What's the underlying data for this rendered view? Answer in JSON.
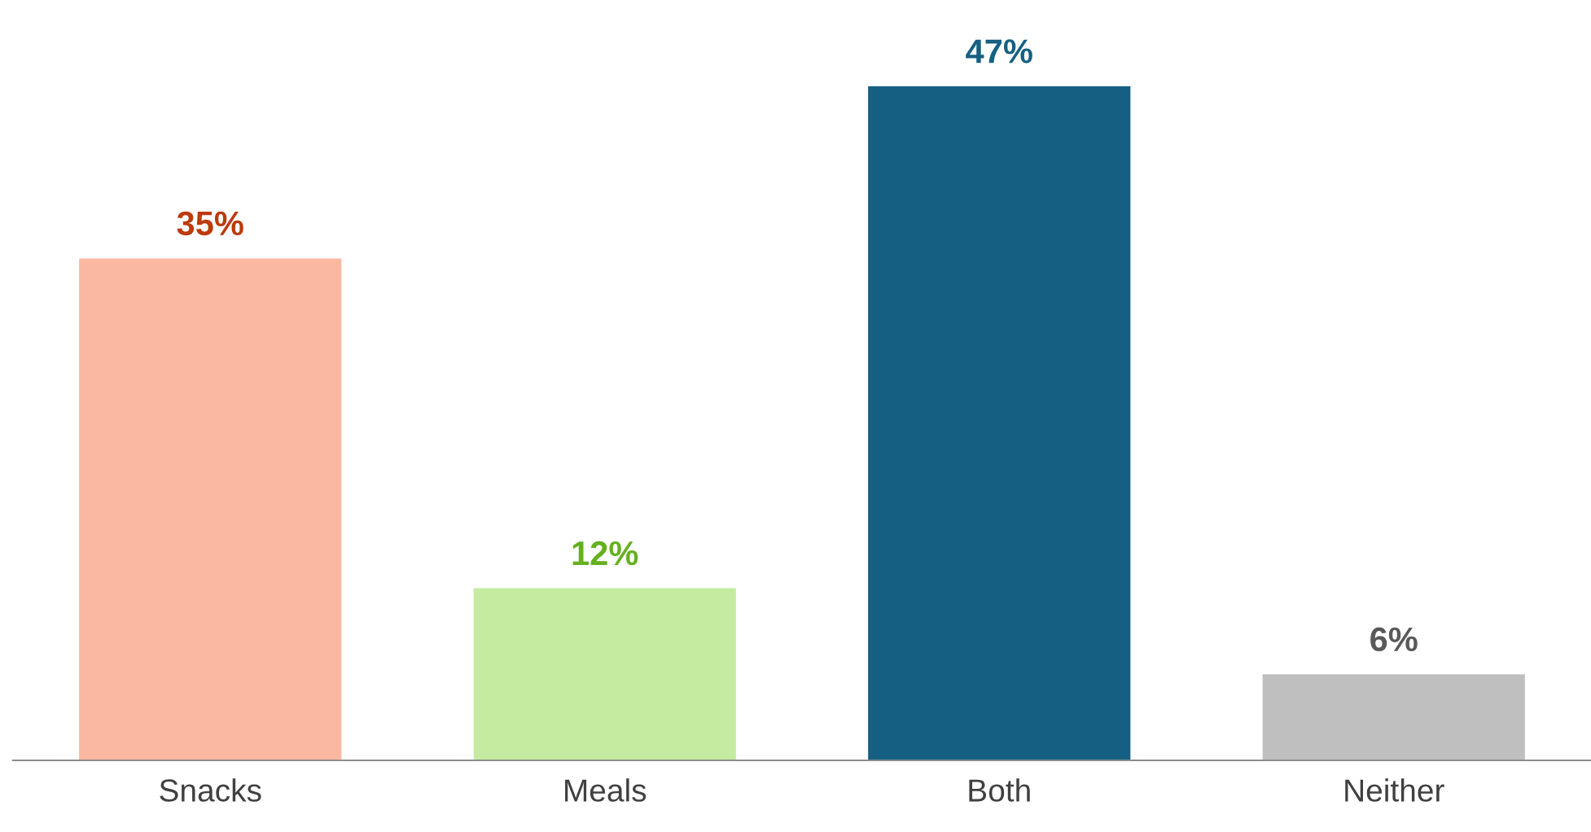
{
  "chart_data": {
    "type": "bar",
    "categories": [
      "Snacks",
      "Meals",
      "Both",
      "Neither"
    ],
    "values": [
      35,
      12,
      47,
      6
    ],
    "colors": [
      "#fbb8a0",
      "#c4eba0",
      "#156082",
      "#bfbfbf"
    ],
    "value_labels": [
      "35%",
      "12%",
      "47%",
      "6%"
    ],
    "grid": false,
    "legend": false
  }
}
